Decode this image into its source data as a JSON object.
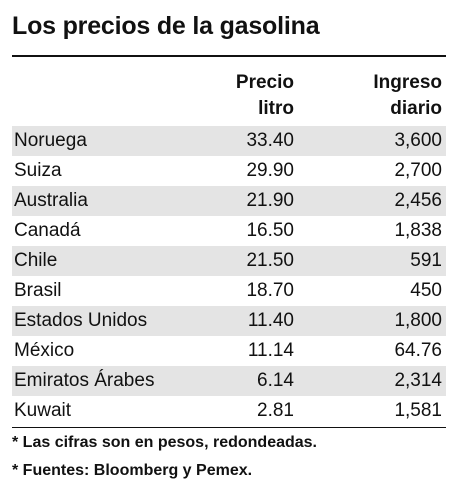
{
  "title": "Los precios de la gasolina",
  "table": {
    "headers": [
      [
        "Precio",
        "litro"
      ],
      [
        "Ingreso",
        "diario"
      ]
    ],
    "rows": [
      [
        "Noruega",
        "33.40",
        "3,600"
      ],
      [
        "Suiza",
        "29.90",
        "2,700"
      ],
      [
        "Australia",
        "21.90",
        "2,456"
      ],
      [
        "Canadá",
        "16.50",
        "1,838"
      ],
      [
        "Chile",
        "21.50",
        "591"
      ],
      [
        "Brasil",
        "18.70",
        "450"
      ],
      [
        "Estados Unidos",
        "11.40",
        "1,800"
      ],
      [
        "México",
        "11.14",
        "64.76"
      ],
      [
        "Emiratos Árabes",
        "6.14",
        "2,314"
      ],
      [
        "Kuwait",
        "2.81",
        "1,581"
      ]
    ]
  },
  "notes": [
    "* Las cifras son en pesos, redondeadas.",
    "* Fuentes: Bloomberg y Pemex."
  ]
}
